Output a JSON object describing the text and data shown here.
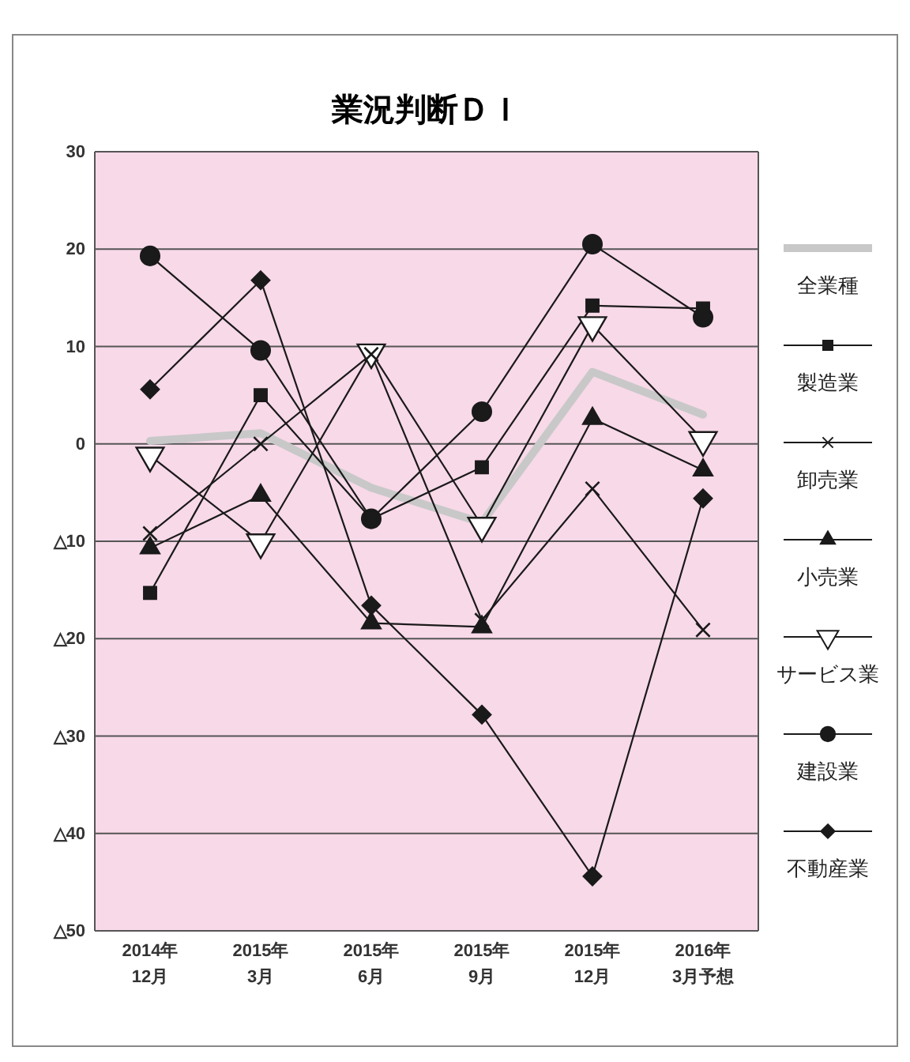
{
  "chart_data": {
    "type": "line",
    "title": "業況判断ＤＩ",
    "categories": [
      "2014年\n12月",
      "2015年\n3月",
      "2015年\n6月",
      "2015年\n9月",
      "2015年\n12月",
      "2016年\n3月予想"
    ],
    "ylim": [
      -50,
      30
    ],
    "yticks": [
      30,
      20,
      10,
      0,
      {
        "value": -10,
        "label": "△10"
      },
      {
        "value": -20,
        "label": "△20"
      },
      {
        "value": -30,
        "label": "△30"
      },
      {
        "value": -40,
        "label": "△40"
      },
      {
        "value": -50,
        "label": "△50"
      }
    ],
    "grid": "y",
    "legend": "right",
    "series": [
      {
        "name": "全業種",
        "color": "#c8c8c8",
        "marker": "none",
        "values": [
          0.3,
          1.1,
          -4.5,
          -8.1,
          7.4,
          3.0
        ]
      },
      {
        "name": "製造業",
        "color": "#1a1a1a",
        "marker": "square",
        "values": [
          -15.3,
          5.0,
          -7.7,
          -2.4,
          14.2,
          13.9
        ]
      },
      {
        "name": "卸売業",
        "color": "#1a1a1a",
        "marker": "cross",
        "values": [
          -9.2,
          0,
          9.2,
          -18.1,
          -4.6,
          -19.1
        ]
      },
      {
        "name": "小売業",
        "color": "#1a1a1a",
        "marker": "triangle",
        "values": [
          -10.7,
          -5.3,
          -18.4,
          -18.8,
          2.6,
          -2.7
        ]
      },
      {
        "name": "サービス業",
        "color": "#1a1a1a",
        "marker": "triangle-down",
        "values": [
          -1.2,
          -10.1,
          9.4,
          -8.4,
          12.2,
          0.4
        ]
      },
      {
        "name": "建設業",
        "color": "#1a1a1a",
        "marker": "circle",
        "values": [
          19.3,
          9.6,
          -7.7,
          3.3,
          20.5,
          13.0
        ]
      },
      {
        "name": "不動産業",
        "color": "#1a1a1a",
        "marker": "diamond",
        "values": [
          5.6,
          16.8,
          -16.6,
          -27.8,
          -44.4,
          -5.6
        ]
      }
    ]
  }
}
